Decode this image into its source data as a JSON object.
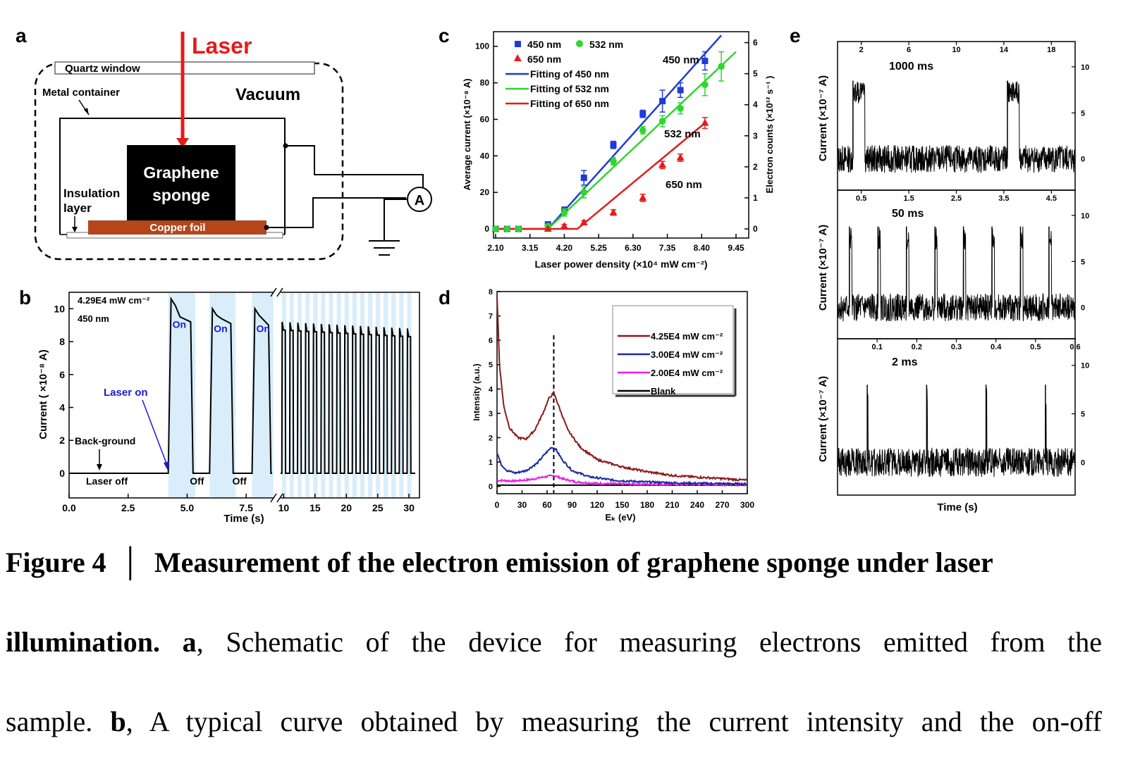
{
  "panel_labels": {
    "a": "a",
    "b": "b",
    "c": "c",
    "d": "d",
    "e": "e"
  },
  "panel_a": {
    "laser": "Laser",
    "quartz_window": "Quartz window",
    "metal_container": "Metal container",
    "vacuum": "Vacuum",
    "sample_line1": "Graphene",
    "sample_line2": "sponge",
    "insulation_line1": "Insulation",
    "insulation_line2": "layer",
    "copper": "Copper  foil",
    "ammeter": "A",
    "colors": {
      "laser": "#e31c1c",
      "copper": "#b5451b",
      "sample": "#000000"
    }
  },
  "chart_data": [
    {
      "id": "b",
      "type": "line",
      "xlabel": "Time (s)",
      "ylabel": "Current ( ×10⁻⁸ A)",
      "x_ticks_left": [
        "0.0",
        "2.5",
        "5.0",
        "7.5"
      ],
      "x_ticks_right": [
        "10",
        "15",
        "20",
        "25",
        "30"
      ],
      "y_ticks": [
        "0",
        "2",
        "4",
        "6",
        "8",
        "10"
      ],
      "ylim": [
        -1.5,
        11
      ],
      "annotations": {
        "condition1": "4.29E4 mW cm⁻²",
        "condition2": "450 nm",
        "laser_on": "Laser on",
        "background": "Back-ground",
        "laser_off": "Laser off",
        "on": "On",
        "off": "Off"
      },
      "segment1": {
        "x_range": [
          0,
          8.6
        ],
        "background_current": 0,
        "pulses": [
          {
            "on": 4.2,
            "off": 5.2,
            "peak": 10.6,
            "plateau": 9.2
          },
          {
            "on": 5.95,
            "off": 6.9,
            "peak": 10.0,
            "plateau": 9.1
          },
          {
            "on": 7.75,
            "off": 8.5,
            "peak": 10.0,
            "plateau": 9.0
          }
        ]
      },
      "segment2": {
        "x_range": [
          9.5,
          31
        ],
        "pulse_count": 17,
        "period": 1.25,
        "peak_start": 9.2,
        "peak_end": 8.8,
        "plateau_start": 8.7,
        "plateau_end": 8.3
      },
      "colors": {
        "line": "#000000",
        "shade": "#d9eefa",
        "annotation": "#1a1ad6"
      }
    },
    {
      "id": "c",
      "type": "scatter",
      "xlabel": "Laser power density (×10⁴ mW cm⁻²)",
      "ylabel": "Average current (×10⁻⁸ A)",
      "ylabel_right": "Electron counts (×10¹² s⁻¹ )",
      "x_ticks": [
        "2.10",
        "3.15",
        "4.20",
        "5.25",
        "6.30",
        "7.35",
        "8.40",
        "9.45"
      ],
      "y_ticks": [
        "0",
        "20",
        "40",
        "60",
        "80",
        "100"
      ],
      "y_ticks_right": [
        "0",
        "1",
        "2",
        "3",
        "4",
        "5",
        "6"
      ],
      "xlim": [
        2.1,
        9.45
      ],
      "ylim": [
        -5,
        108
      ],
      "legend": [
        "450 nm",
        "532 nm",
        "650 nm",
        "Fitting of 450 nm",
        "Fitting of 532 nm",
        "Fitting of 650 nm"
      ],
      "series_labels": {
        "s450": "450 nm",
        "s532": "532 nm",
        "s650": "650 nm"
      },
      "series": [
        {
          "name": "450 nm",
          "marker": "square",
          "color": "#1f3bd6",
          "x": [
            2.1,
            2.45,
            2.8,
            3.7,
            4.2,
            4.8,
            5.7,
            6.6,
            7.2,
            7.75,
            8.5
          ],
          "y": [
            0,
            0,
            0,
            2.5,
            10,
            28,
            46,
            63,
            70,
            76,
            92
          ],
          "err": [
            0,
            0,
            0,
            1,
            2,
            4,
            2,
            2,
            6,
            4,
            5
          ]
        },
        {
          "name": "532 nm",
          "marker": "circle",
          "color": "#2ed62e",
          "x": [
            2.1,
            2.45,
            2.8,
            3.7,
            4.2,
            4.8,
            5.7,
            6.6,
            7.2,
            7.75,
            8.5,
            9.0
          ],
          "y": [
            0,
            0,
            0,
            1.5,
            9,
            20,
            37,
            54,
            59,
            66,
            79,
            89
          ],
          "err": [
            0,
            0,
            0,
            1,
            2,
            3,
            2,
            2,
            3,
            3,
            6,
            8
          ]
        },
        {
          "name": "650 nm",
          "marker": "triangle",
          "color": "#e31c1c",
          "x": [
            3.7,
            4.2,
            4.8,
            5.7,
            6.6,
            7.2,
            7.75,
            8.5
          ],
          "y": [
            0,
            1.5,
            3.5,
            9,
            17,
            35,
            39,
            58
          ],
          "err": [
            0,
            1,
            1,
            1.5,
            2,
            2,
            2,
            3
          ]
        }
      ],
      "fits": [
        {
          "name": "Fitting of 450 nm",
          "color": "#1f3bd6",
          "x": [
            3.7,
            9.0
          ],
          "y": [
            3,
            106
          ]
        },
        {
          "name": "Fitting of 532 nm",
          "color": "#2ed62e",
          "x": [
            3.7,
            9.45
          ],
          "y": [
            1,
            97
          ]
        },
        {
          "name": "Fitting of 650 nm",
          "color": "#e31c1c",
          "x": [
            4.6,
            8.5
          ],
          "y": [
            1,
            58
          ]
        }
      ]
    },
    {
      "id": "d",
      "type": "line",
      "xlabel": "Eₖ (eV)",
      "ylabel": "Intensity (a.u.)",
      "x_ticks": [
        "0",
        "30",
        "60",
        "90",
        "120",
        "150",
        "180",
        "210",
        "240",
        "270",
        "300"
      ],
      "y_ticks": [
        "0",
        "1",
        "2",
        "3",
        "4",
        "5",
        "6",
        "7",
        "8"
      ],
      "xlim": [
        0,
        300
      ],
      "ylim": [
        -0.3,
        8
      ],
      "dashed_line_x": 68,
      "legend": [
        "4.25E4 mW cm⁻²",
        "3.00E4 mW cm⁻²",
        "2.00E4 mW cm⁻²",
        "Blank"
      ],
      "series": [
        {
          "name": "4.25E4 mW cm⁻²",
          "color": "#8b1a1a",
          "x": [
            0,
            3,
            8,
            15,
            25,
            35,
            45,
            55,
            62,
            68,
            75,
            85,
            100,
            120,
            150,
            180,
            210,
            240,
            270,
            300
          ],
          "y": [
            7.8,
            5.0,
            3.3,
            2.4,
            2.0,
            1.95,
            2.3,
            3.0,
            3.6,
            3.85,
            3.2,
            2.3,
            1.6,
            1.1,
            0.8,
            0.6,
            0.45,
            0.38,
            0.32,
            0.25
          ]
        },
        {
          "name": "3.00E4 mW cm⁻²",
          "color": "#1c2b9c",
          "x": [
            0,
            5,
            12,
            22,
            35,
            48,
            58,
            65,
            70,
            78,
            90,
            110,
            140,
            180,
            230,
            300
          ],
          "y": [
            1.4,
            0.9,
            0.65,
            0.55,
            0.65,
            0.95,
            1.35,
            1.6,
            1.55,
            1.1,
            0.65,
            0.4,
            0.25,
            0.18,
            0.13,
            0.1
          ]
        },
        {
          "name": "2.00E4 mW cm⁻²",
          "color": "#e61ee6",
          "x": [
            0,
            20,
            40,
            55,
            68,
            80,
            95,
            120,
            160,
            220,
            300
          ],
          "y": [
            0.25,
            0.22,
            0.28,
            0.38,
            0.45,
            0.3,
            0.18,
            0.12,
            0.09,
            0.08,
            0.07
          ]
        },
        {
          "name": "Blank",
          "color": "#000000",
          "x": [
            0,
            300
          ],
          "y": [
            0.05,
            0.05
          ]
        }
      ]
    },
    {
      "id": "e",
      "type": "line",
      "xlabel": "Time (s)",
      "ylabel": "Current (×10⁻⁷ A)",
      "subplots": [
        {
          "label": "1000 ms",
          "x_ticks": [
            "2",
            "6",
            "10",
            "14",
            "18"
          ],
          "xlim": [
            0,
            20
          ],
          "pulses_x": [
            1.3,
            14.3
          ],
          "pulse_width": 1.0,
          "peak": 8.5
        },
        {
          "label": "50 ms",
          "x_ticks": [
            "0.5",
            "1.5",
            "2.5",
            "3.5",
            "4.5"
          ],
          "xlim": [
            0,
            5
          ],
          "pulses_x": [
            0.25,
            0.85,
            1.45,
            2.05,
            2.65,
            3.25,
            3.85,
            4.45
          ],
          "pulse_width": 0.05,
          "peak": 8.8
        },
        {
          "label": "2 ms",
          "x_ticks": [
            "0.1",
            "0.2",
            "0.3",
            "0.4",
            "0.5",
            "0.6"
          ],
          "xlim": [
            0,
            0.6
          ],
          "pulses_x": [
            0.075,
            0.225,
            0.375,
            0.525
          ],
          "pulse_width": 0.002,
          "peak": 8.0
        }
      ],
      "y_ticks_right": [
        "0",
        "5",
        "10"
      ],
      "ylim": [
        -4,
        14
      ],
      "noise_amplitude": 1.5
    }
  ],
  "caption": {
    "fig_label": "Figure 4",
    "separator": "│",
    "title_part1": "Measurement of the electron emission of graphene sponge under laser",
    "title_part2": "illumination.",
    "a_label": "a",
    "a_text": ", Schematic of the device for measuring electrons emitted from the",
    "line3_start": "sample.",
    "b_label": "b",
    "b_text": ", A typical curve obtained by measuring the current intensity and the on-off"
  }
}
